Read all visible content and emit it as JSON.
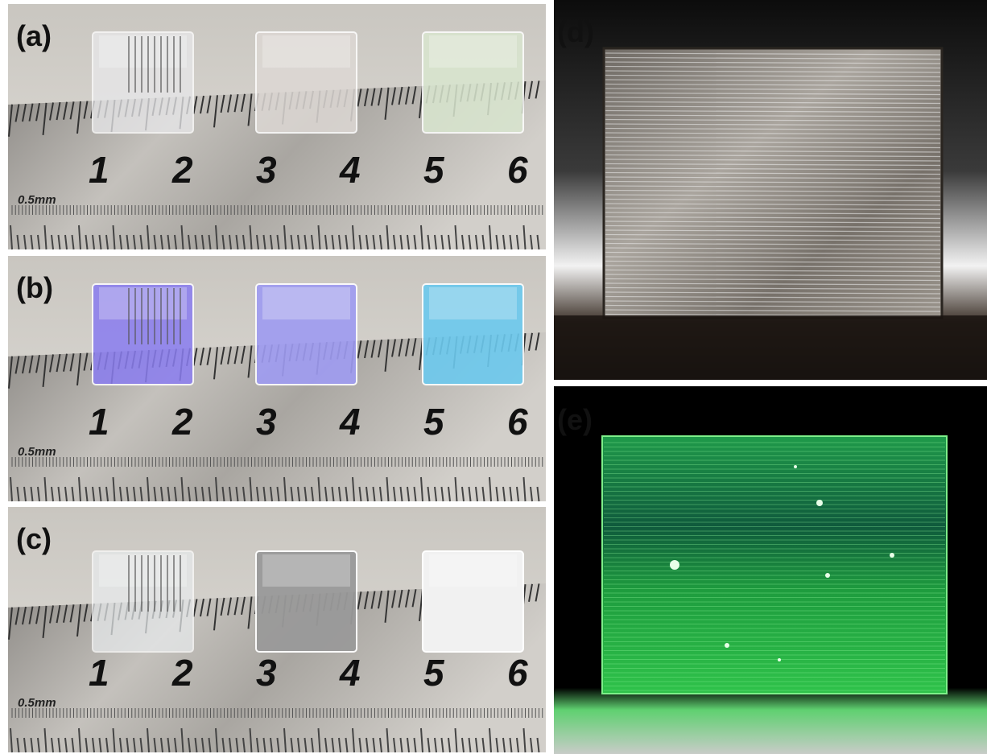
{
  "panels": [
    {
      "label": "(a)",
      "ruler_numbers": [
        "1",
        "2",
        "3",
        "4",
        "5",
        "6"
      ],
      "ruler_unit": "0.5mm"
    },
    {
      "label": "(b)",
      "ruler_numbers": [
        "1",
        "2",
        "3",
        "4",
        "5",
        "6"
      ],
      "ruler_unit": "0.5mm"
    },
    {
      "label": "(c)",
      "ruler_numbers": [
        "1",
        "2",
        "3",
        "4",
        "5",
        "6"
      ],
      "ruler_unit": "0.5mm"
    },
    {
      "label": "(d)"
    },
    {
      "label": "(e)"
    }
  ]
}
